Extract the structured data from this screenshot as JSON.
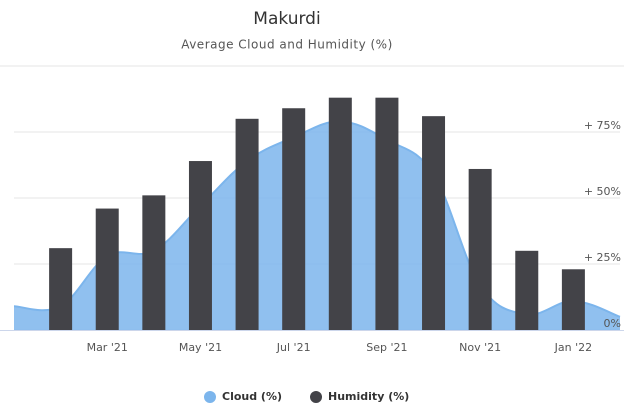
{
  "chart_data": {
    "type": "area_bar",
    "title": "Makurdi",
    "subtitle": "Average Cloud and Humidity (%)",
    "categories": [
      null,
      null,
      "Mar '21",
      null,
      "May '21",
      null,
      "Jul '21",
      null,
      "Sep '21",
      null,
      "Nov '21",
      null,
      "Jan '22",
      null
    ],
    "series": [
      {
        "name": "Cloud (%)",
        "type": "area",
        "color": "#7cb5ec",
        "values": [
          9,
          9,
          28,
          30,
          47,
          64,
          73,
          79,
          72,
          59,
          17,
          6,
          11,
          5
        ]
      },
      {
        "name": "Humidity (%)",
        "type": "bar",
        "color": "#434348",
        "values": [
          null,
          31,
          46,
          51,
          64,
          80,
          84,
          88,
          88,
          81,
          61,
          30,
          23,
          null
        ]
      }
    ],
    "ylim": [
      0,
      100
    ],
    "yticks": [
      {
        "value": 0,
        "label": "0%"
      },
      {
        "value": 25,
        "label": "+ 25%"
      },
      {
        "value": 50,
        "label": "+ 50%"
      },
      {
        "value": 75,
        "label": "+ 75%"
      }
    ],
    "grid": true,
    "legend": "bottom"
  }
}
